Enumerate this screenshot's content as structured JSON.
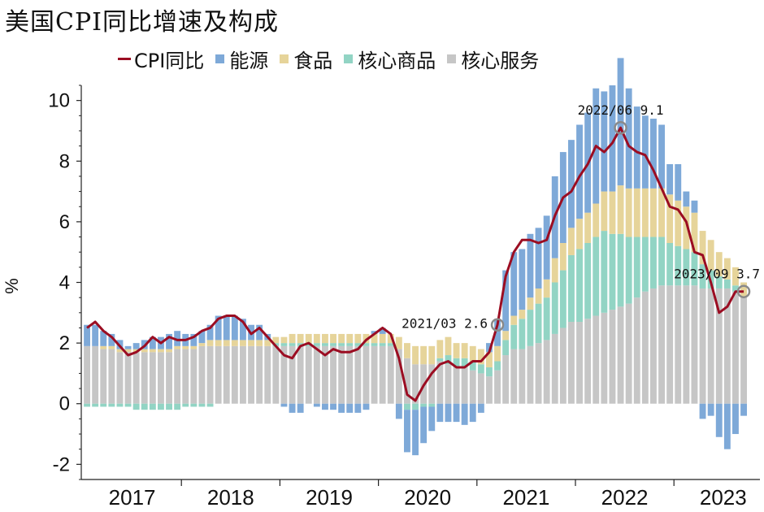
{
  "chart_data": {
    "type": "bar+line",
    "title": "美国CPI同比增速及构成",
    "ylabel": "%",
    "ylim": [
      -2.5,
      10.5
    ],
    "yticks": [
      -2,
      0,
      2,
      4,
      6,
      8,
      10
    ],
    "years": [
      "2017",
      "2018",
      "2019",
      "2020",
      "2021",
      "2022",
      "2023"
    ],
    "months_per_year": 12,
    "months_2023": 9,
    "legend": [
      {
        "name": "CPI同比",
        "kind": "line",
        "color": "#9b0d22"
      },
      {
        "name": "能源",
        "kind": "bar",
        "color": "#7ea9d8"
      },
      {
        "name": "食品",
        "kind": "bar",
        "color": "#e6d49a"
      },
      {
        "name": "核心商品",
        "kind": "bar",
        "color": "#92d4c4"
      },
      {
        "name": "核心服务",
        "kind": "bar",
        "color": "#c6c6c6"
      }
    ],
    "series": {
      "cpi": [
        2.5,
        2.7,
        2.4,
        2.2,
        1.9,
        1.6,
        1.7,
        1.9,
        2.2,
        2.0,
        2.2,
        2.1,
        2.1,
        2.2,
        2.4,
        2.5,
        2.8,
        2.9,
        2.9,
        2.7,
        2.3,
        2.5,
        2.2,
        1.9,
        1.6,
        1.5,
        1.9,
        2.0,
        1.8,
        1.6,
        1.8,
        1.7,
        1.7,
        1.8,
        2.1,
        2.3,
        2.5,
        2.3,
        1.5,
        0.3,
        0.1,
        0.6,
        1.0,
        1.3,
        1.4,
        1.2,
        1.2,
        1.4,
        1.4,
        1.7,
        2.6,
        4.2,
        5.0,
        5.4,
        5.4,
        5.3,
        5.4,
        6.2,
        6.8,
        7.0,
        7.5,
        7.9,
        8.5,
        8.3,
        8.6,
        9.1,
        8.5,
        8.3,
        8.2,
        7.7,
        7.1,
        6.5,
        6.4,
        6.0,
        5.0,
        4.9,
        4.0,
        3.0,
        3.2,
        3.7,
        3.7
      ],
      "energy": [
        0.7,
        0.7,
        0.5,
        0.4,
        0.3,
        0.1,
        0.2,
        0.3,
        0.4,
        0.4,
        0.5,
        0.5,
        0.4,
        0.4,
        0.4,
        0.5,
        0.8,
        0.8,
        0.8,
        0.7,
        0.5,
        0.5,
        0.2,
        0.0,
        -0.1,
        -0.3,
        -0.3,
        0.0,
        -0.1,
        -0.2,
        -0.2,
        -0.3,
        -0.3,
        -0.3,
        -0.2,
        0.1,
        0.2,
        0.0,
        -0.5,
        -1.4,
        -1.5,
        -1.2,
        -0.8,
        -0.6,
        -0.6,
        -0.6,
        -0.7,
        -0.6,
        -0.3,
        0.3,
        0.9,
        2.0,
        2.1,
        2.0,
        2.1,
        2.0,
        2.1,
        2.7,
        3.0,
        2.9,
        3.1,
        3.3,
        3.8,
        3.3,
        3.5,
        4.2,
        3.3,
        2.7,
        2.4,
        2.3,
        2.1,
        1.0,
        1.2,
        0.5,
        0.4,
        -0.5,
        -0.4,
        -1.1,
        -1.5,
        -1.0,
        -0.4
      ],
      "food": [
        0.0,
        0.0,
        0.1,
        0.1,
        0.1,
        0.1,
        0.1,
        0.1,
        0.1,
        0.1,
        0.1,
        0.1,
        0.1,
        0.1,
        0.1,
        0.2,
        0.2,
        0.2,
        0.2,
        0.2,
        0.2,
        0.2,
        0.2,
        0.2,
        0.2,
        0.3,
        0.3,
        0.3,
        0.3,
        0.3,
        0.3,
        0.3,
        0.3,
        0.3,
        0.3,
        0.3,
        0.3,
        0.3,
        0.4,
        0.5,
        0.6,
        0.6,
        0.6,
        0.6,
        0.6,
        0.5,
        0.5,
        0.5,
        0.5,
        0.5,
        0.5,
        0.3,
        0.3,
        0.3,
        0.4,
        0.5,
        0.6,
        0.8,
        0.9,
        0.9,
        1.0,
        1.0,
        1.1,
        1.3,
        1.4,
        1.6,
        1.6,
        1.6,
        1.6,
        1.6,
        1.6,
        1.6,
        1.5,
        1.4,
        1.3,
        1.1,
        1.0,
        0.8,
        0.7,
        0.6,
        0.5
      ],
      "core_goods": [
        -0.1,
        -0.1,
        -0.1,
        -0.1,
        -0.1,
        -0.1,
        -0.2,
        -0.2,
        -0.2,
        -0.2,
        -0.2,
        -0.2,
        -0.1,
        -0.1,
        -0.1,
        -0.1,
        0.0,
        0.0,
        0.0,
        0.0,
        0.0,
        0.0,
        0.0,
        0.1,
        0.1,
        0.1,
        0.1,
        0.1,
        0.1,
        0.1,
        0.1,
        0.1,
        0.1,
        0.1,
        0.1,
        0.1,
        0.1,
        0.1,
        0.0,
        -0.2,
        -0.2,
        -0.1,
        -0.1,
        0.1,
        0.3,
        0.3,
        0.3,
        0.3,
        0.3,
        0.3,
        0.3,
        0.5,
        0.8,
        1.0,
        1.2,
        1.3,
        1.4,
        1.7,
        1.9,
        2.2,
        2.4,
        2.5,
        2.6,
        2.7,
        2.5,
        2.4,
        2.2,
        2.0,
        1.8,
        1.7,
        1.6,
        1.4,
        1.3,
        1.2,
        1.1,
        0.8,
        0.6,
        0.4,
        0.3,
        0.2,
        0.0
      ],
      "core_services": [
        1.9,
        1.9,
        1.8,
        1.8,
        1.7,
        1.7,
        1.7,
        1.7,
        1.7,
        1.7,
        1.7,
        1.8,
        1.8,
        1.8,
        1.9,
        1.9,
        1.9,
        1.9,
        1.9,
        1.9,
        1.9,
        1.9,
        1.9,
        1.9,
        1.9,
        1.9,
        1.9,
        1.9,
        1.9,
        1.9,
        1.9,
        1.9,
        1.9,
        1.9,
        1.9,
        1.9,
        1.9,
        1.9,
        1.8,
        1.5,
        1.3,
        1.3,
        1.3,
        1.4,
        1.3,
        1.2,
        1.2,
        1.1,
        1.0,
        0.9,
        1.1,
        1.6,
        1.8,
        1.8,
        1.9,
        2.0,
        2.1,
        2.3,
        2.5,
        2.7,
        2.7,
        2.8,
        2.9,
        3.0,
        3.1,
        3.2,
        3.3,
        3.5,
        3.7,
        3.8,
        3.9,
        3.9,
        3.9,
        3.9,
        3.9,
        3.8,
        3.8,
        3.8,
        3.8,
        3.7,
        3.5
      ],
      "annotations": [
        {
          "month_index": 50,
          "label": "2021/03 2.6",
          "value": 2.6,
          "pos": "left"
        },
        {
          "month_index": 65,
          "label": "2022/06 9.1",
          "value": 9.1,
          "pos": "top"
        },
        {
          "month_index": 80,
          "label": "2023/09 3.7",
          "value": 3.7,
          "pos": "top"
        }
      ]
    }
  }
}
